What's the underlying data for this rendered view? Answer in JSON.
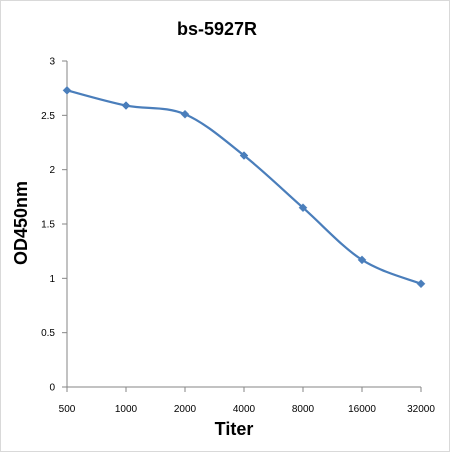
{
  "chart_data": {
    "type": "line",
    "title": "bs-5927R",
    "xlabel": "Titer",
    "ylabel": "OD450nm",
    "categories": [
      "500",
      "1000",
      "2000",
      "4000",
      "8000",
      "16000",
      "32000"
    ],
    "yticks": [
      "0",
      "0.5",
      "1",
      "1.5",
      "2",
      "2.5",
      "3"
    ],
    "ylim": [
      0,
      3
    ],
    "grid": false,
    "legend": "none",
    "series": [
      {
        "values": [
          2.73,
          2.59,
          2.51,
          2.13,
          1.65,
          1.17,
          0.95
        ],
        "color": "#4a7ebb",
        "marker": "diamond"
      }
    ]
  }
}
